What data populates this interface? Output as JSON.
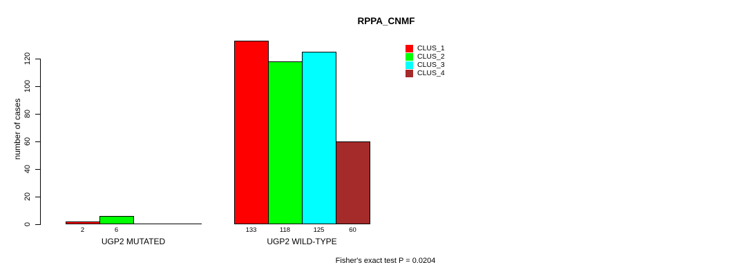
{
  "chart_data": {
    "type": "bar",
    "title": "RPPA_CNMF",
    "xlabel": "",
    "ylabel": "number of cases",
    "categories": [
      "UGP2 MUTATED",
      "UGP2 WILD-TYPE"
    ],
    "series": [
      {
        "name": "CLUS_1",
        "color": "#FF0000",
        "values": [
          2,
          133
        ]
      },
      {
        "name": "CLUS_2",
        "color": "#00FF00",
        "values": [
          6,
          118
        ]
      },
      {
        "name": "CLUS_3",
        "color": "#00FFFF",
        "values": [
          0,
          125
        ]
      },
      {
        "name": "CLUS_4",
        "color": "#A52A2A",
        "values": [
          0,
          60
        ]
      }
    ],
    "yticks": [
      0,
      20,
      40,
      60,
      80,
      100,
      120
    ],
    "ylim": [
      0,
      133
    ],
    "grid": false,
    "legend_position": "right",
    "bar_value_labels": [
      "2",
      "6",
      "133",
      "118",
      "125",
      "60"
    ],
    "annotation": "Fisher's exact test P = 0.0204"
  }
}
